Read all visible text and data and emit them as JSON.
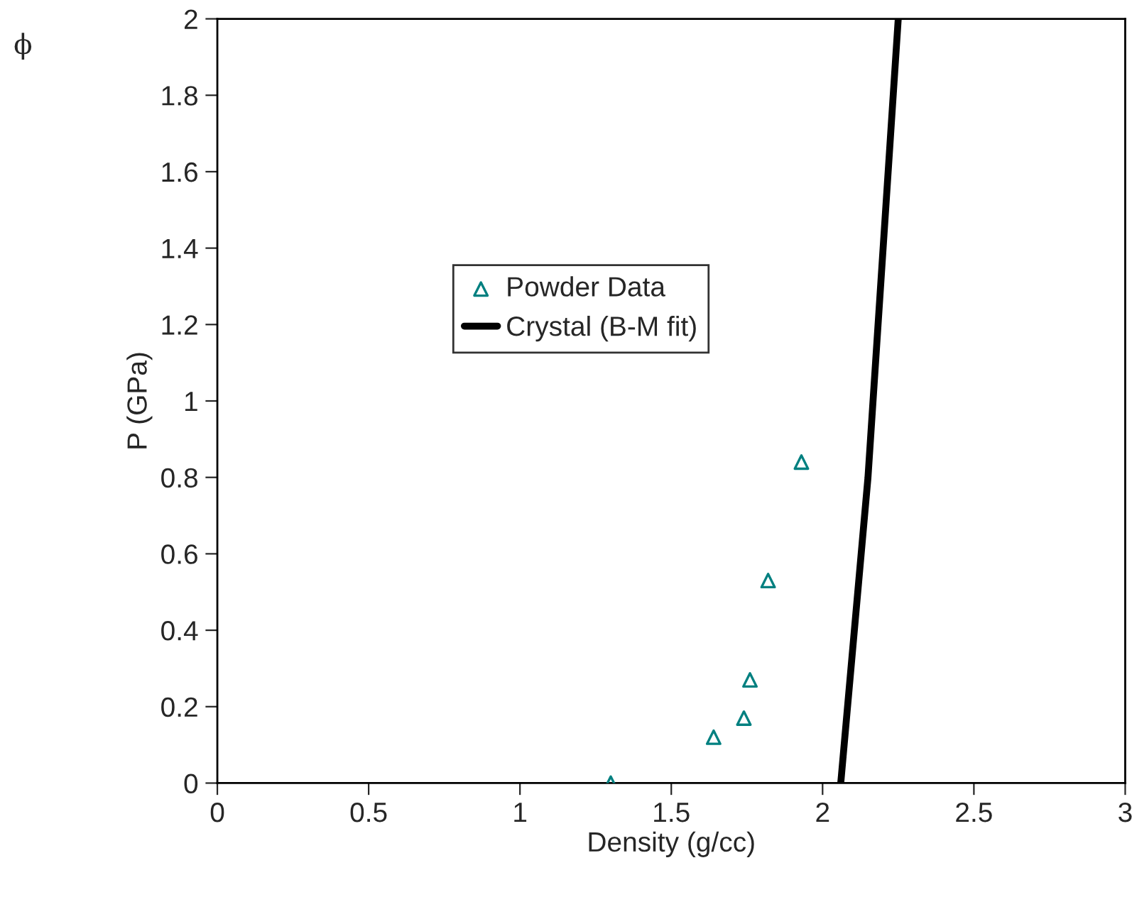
{
  "chart_data": {
    "type": "scatter",
    "xlabel": "Density (g/cc)",
    "ylabel": "P (GPa)",
    "annotations": [
      "ϕ"
    ],
    "xlim": [
      0,
      3
    ],
    "xticks": [
      0,
      0.5,
      1,
      1.5,
      2,
      2.5,
      3
    ],
    "ylim": [
      0,
      2
    ],
    "yticks": [
      0,
      0.2,
      0.4,
      0.6,
      0.8,
      1,
      1.2,
      1.4,
      1.6,
      1.8,
      2
    ],
    "grid": false,
    "legend": "center",
    "series": [
      {
        "name": "Powder Data",
        "marker": "triangle",
        "color": "#008080",
        "x": [
          1.3,
          1.64,
          1.74,
          1.76,
          1.82,
          1.93
        ],
        "values": [
          0,
          0.12,
          0.17,
          0.27,
          0.53,
          0.84
        ]
      },
      {
        "name": "Crystal (B-M fit)",
        "type": "line",
        "marker": "none",
        "line_style": "solid",
        "color": "#000000",
        "x": [
          2.06,
          2.15,
          2.25
        ],
        "values": [
          0,
          0.8,
          2
        ]
      }
    ]
  }
}
